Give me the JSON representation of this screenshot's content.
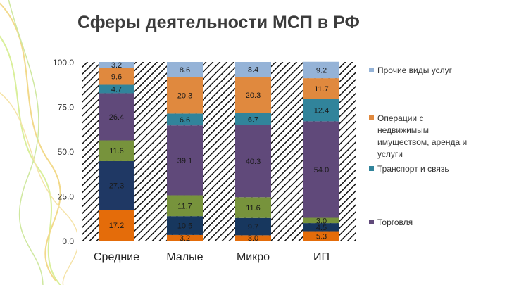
{
  "slide": {
    "title": "Сферы деятельности МСП в РФ"
  },
  "chart_data": {
    "type": "bar",
    "stacked": true,
    "categories": [
      "Средние",
      "Малые",
      "Микро",
      "ИП"
    ],
    "y_ticks": [
      "0.0",
      "25.0",
      "50.0",
      "75.0",
      "100.0"
    ],
    "ylim": [
      0,
      100
    ],
    "background_pattern": "diagonal-hatch",
    "legend_position": "right",
    "series": [
      {
        "name": "",
        "color": "#e46c0a",
        "values": [
          17.2,
          3.2,
          3.0,
          5.3
        ],
        "labels": [
          "17.2",
          "3.2",
          "3.0",
          "5.3"
        ]
      },
      {
        "name": "",
        "color": "#17375e",
        "values": [
          0,
          10.5,
          9.7,
          4.5
        ],
        "labels": [
          "",
          "10.5",
          "9.7",
          "4.5"
        ]
      },
      {
        "name": "",
        "color": "#1f3864",
        "values": [
          27.3,
          0,
          0,
          0
        ],
        "labels": [
          "27.3",
          "",
          "",
          ""
        ]
      },
      {
        "name": "",
        "color": "#77933c",
        "values": [
          11.6,
          11.7,
          11.6,
          3.0
        ],
        "labels": [
          "11.6",
          "11.7",
          "11.6",
          "3.0"
        ]
      },
      {
        "name": "Торговля",
        "color": "#60497a",
        "values": [
          26.4,
          39.1,
          40.3,
          54.0
        ],
        "labels": [
          "26.4",
          "39.1",
          "40.3",
          "54.0"
        ]
      },
      {
        "name": "Транспорт и связь",
        "color": "#31849b",
        "values": [
          4.7,
          6.6,
          6.7,
          12.4
        ],
        "labels": [
          "4.7",
          "6.6",
          "6.7",
          "12.4"
        ]
      },
      {
        "name": "Операции с недвижимым имуществом, аренда и услуги",
        "color": "#e0893e",
        "values": [
          9.6,
          20.3,
          20.3,
          11.7
        ],
        "labels": [
          "9.6",
          "20.3",
          "20.3",
          "11.7"
        ]
      },
      {
        "name": "Прочие виды услуг",
        "color": "#95b3d7",
        "values": [
          3.2,
          8.6,
          8.4,
          9.2
        ],
        "labels": [
          "3.2",
          "8.6",
          "8.4",
          "9.2"
        ]
      }
    ],
    "legend": [
      {
        "lines": [
          "Прочие виды услуг"
        ],
        "color": "#95b3d7"
      },
      {
        "lines": [
          "Операции с",
          "недвижимым",
          "имуществом, аренда и",
          "услуги"
        ],
        "color": "#e0893e"
      },
      {
        "lines": [
          "Транспорт и связь"
        ],
        "color": "#31849b"
      },
      {
        "lines": [
          "Торговля"
        ],
        "color": "#60497a"
      }
    ]
  }
}
